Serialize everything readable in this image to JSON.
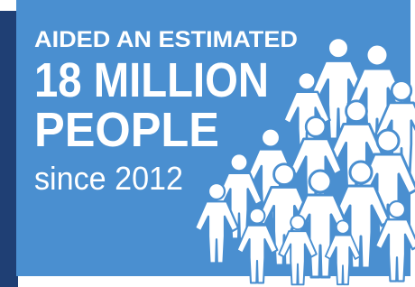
{
  "text": {
    "line1": "AIDED AN ESTIMATED",
    "line2": "18 MILLION",
    "line3": "PEOPLE",
    "line4": "since 2012"
  }
}
